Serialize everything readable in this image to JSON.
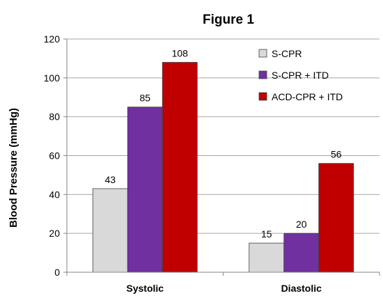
{
  "chart_data": {
    "type": "bar",
    "title": "Figure 1",
    "xlabel": "",
    "ylabel": "Blood Pressure (mmHg)",
    "categories": [
      "Systolic",
      "Diastolic"
    ],
    "series": [
      {
        "name": "S-CPR",
        "values": [
          43,
          15
        ],
        "color": "#d9d9d9"
      },
      {
        "name": "S-CPR + ITD",
        "values": [
          85,
          20
        ],
        "color": "#7030a0"
      },
      {
        "name": "ACD-CPR + ITD",
        "values": [
          108,
          56
        ],
        "color": "#c00000"
      }
    ],
    "ylim": [
      0,
      120
    ],
    "yticks": [
      0,
      20,
      40,
      60,
      80,
      100,
      120
    ],
    "grid": true,
    "legend_position": "top-right",
    "data_labels": true
  }
}
